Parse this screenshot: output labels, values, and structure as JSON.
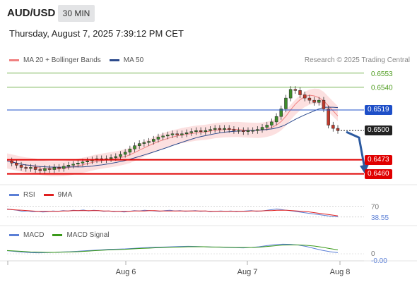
{
  "header": {
    "symbol": "AUD/USD",
    "timeframe": "30 MIN",
    "datetime": "Thursday, August 7, 2025 7:39:12 PM CET",
    "credit": "Research © 2025 Trading Central"
  },
  "legend": {
    "price": [
      {
        "label": "MA 20 + Bollinger Bands",
        "color": "#f08080"
      },
      {
        "label": "MA 50",
        "color": "#2c4a8c"
      }
    ],
    "rsi": [
      {
        "label": "RSI",
        "color": "#5b7fd6"
      },
      {
        "label": "9MA",
        "color": "#e02020"
      }
    ],
    "macd": [
      {
        "label": "MACD",
        "color": "#5b7fd6"
      },
      {
        "label": "MACD Signal",
        "color": "#3a9a1a"
      }
    ]
  },
  "colors": {
    "green": "#4a9a1a",
    "blue": "#1e4fc8",
    "red": "#e00000",
    "dark": "#222222",
    "bull": "#3d8c2a",
    "bear": "#c0392b",
    "band": "#fbd3d3"
  },
  "chart_data": [
    {
      "type": "line",
      "title": "",
      "x_labels": [
        "Aug 6",
        "Aug 7",
        "Aug 8"
      ],
      "ylim": [
        0.645,
        0.656
      ],
      "series": [
        {
          "name": "AUD/USD",
          "values": [
            0.6472,
            0.647,
            0.6468,
            0.6466,
            0.6465,
            0.6466,
            0.6464,
            0.6463,
            0.6465,
            0.6464,
            0.6466,
            0.6465,
            0.6467,
            0.6468,
            0.6469,
            0.647,
            0.6471,
            0.6472,
            0.6473,
            0.6474,
            0.6473,
            0.6474,
            0.6475,
            0.6476,
            0.6478,
            0.648,
            0.6483,
            0.6486,
            0.6488,
            0.6489,
            0.649,
            0.6492,
            0.6494,
            0.6495,
            0.6496,
            0.6497,
            0.6496,
            0.6497,
            0.6498,
            0.6499,
            0.65,
            0.6499,
            0.65,
            0.6501,
            0.6502,
            0.6501,
            0.6502,
            0.6501,
            0.65,
            0.65,
            0.6499,
            0.65,
            0.65,
            0.6501,
            0.6503,
            0.6505,
            0.6508,
            0.6513,
            0.652,
            0.653,
            0.6538,
            0.6537,
            0.6533,
            0.653,
            0.6528,
            0.6526,
            0.6528,
            0.652,
            0.6505,
            0.6502,
            0.65
          ]
        }
      ],
      "levels": [
        {
          "value": 0.6553,
          "label": "0.6553",
          "color": "#4a9a1a",
          "style": "thin"
        },
        {
          "value": 0.654,
          "label": "0.6540",
          "color": "#4a9a1a",
          "style": "thin"
        },
        {
          "value": 0.6519,
          "label": "0.6519",
          "color": "#1e4fc8",
          "style": "tag"
        },
        {
          "value": 0.65,
          "label": "0.6500",
          "color": "#222222",
          "style": "tag"
        },
        {
          "value": 0.6473,
          "label": "0.6473",
          "color": "#e00000",
          "style": "tag"
        },
        {
          "value": 0.646,
          "label": "0.6460",
          "color": "#e00000",
          "style": "tag"
        }
      ]
    },
    {
      "type": "line",
      "title": "RSI",
      "levels": [
        {
          "value": 70,
          "label": "70"
        },
        {
          "value": 38.55,
          "label": "38.55"
        }
      ],
      "series": [
        {
          "name": "RSI",
          "values": [
            62,
            60,
            58,
            55,
            56,
            54,
            55,
            53,
            54,
            56,
            55,
            57,
            56,
            58,
            57,
            59,
            56,
            58,
            57,
            55,
            56,
            54,
            55,
            53,
            55,
            57,
            56,
            58,
            57,
            56,
            55,
            57,
            58,
            56,
            57,
            55,
            56,
            57,
            55,
            56,
            54,
            55,
            56,
            55,
            56,
            54,
            55,
            56,
            57,
            55,
            56,
            58,
            60,
            62,
            60,
            58,
            56,
            54,
            52,
            50,
            48,
            46,
            44,
            42,
            40,
            39
          ]
        },
        {
          "name": "9MA",
          "values": [
            61,
            60,
            59,
            58,
            57,
            56,
            55,
            55,
            55,
            55,
            55,
            56,
            56,
            57,
            57,
            57,
            57,
            57,
            57,
            56,
            56,
            55,
            55,
            55,
            55,
            56,
            56,
            56,
            57,
            57,
            56,
            56,
            56,
            56,
            56,
            56,
            56,
            56,
            56,
            56,
            55,
            55,
            55,
            55,
            55,
            55,
            55,
            55,
            56,
            56,
            56,
            57,
            57,
            58,
            58,
            58,
            57,
            56,
            55,
            54,
            52,
            50,
            48,
            46,
            44,
            42
          ]
        }
      ]
    },
    {
      "type": "line",
      "title": "MACD",
      "levels": [
        {
          "value": 0,
          "label": "0"
        },
        {
          "value": 0,
          "label": "-0.00"
        }
      ],
      "series": [
        {
          "name": "MACD",
          "values": [
            -0.2,
            -0.5,
            -0.8,
            -1.0,
            -1.1,
            -1.0,
            -0.9,
            -0.7,
            -0.6,
            -0.4,
            -0.2,
            0,
            0.2,
            0.4,
            0.5,
            0.6,
            0.8,
            1.0,
            1.2,
            1.3,
            1.4,
            1.5,
            1.6,
            1.7,
            1.6,
            1.5,
            1.4,
            1.3,
            1.2,
            1.1,
            1.0,
            1.2,
            1.5,
            2.0,
            2.4,
            2.6,
            2.5,
            2.2,
            1.6,
            0.8,
            0.0,
            -0.6,
            -1.0
          ]
        },
        {
          "name": "MACD Signal",
          "values": [
            -0.1,
            -0.3,
            -0.5,
            -0.7,
            -0.8,
            -0.9,
            -0.9,
            -0.8,
            -0.7,
            -0.6,
            -0.4,
            -0.2,
            0,
            0.2,
            0.3,
            0.4,
            0.6,
            0.8,
            0.9,
            1.1,
            1.2,
            1.3,
            1.4,
            1.5,
            1.5,
            1.5,
            1.4,
            1.4,
            1.3,
            1.2,
            1.2,
            1.2,
            1.3,
            1.6,
            1.9,
            2.2,
            2.3,
            2.3,
            2.1,
            1.8,
            1.3,
            0.7,
            0.2
          ]
        }
      ]
    }
  ]
}
